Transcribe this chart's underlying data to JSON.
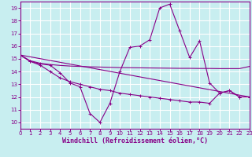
{
  "background_color": "#c8eef0",
  "grid_color": "#ffffff",
  "line_color": "#880088",
  "xlabel": "Windchill (Refroidissement éolien,°C)",
  "xlim": [
    0,
    23
  ],
  "ylim": [
    9.5,
    19.5
  ],
  "yticks": [
    10,
    11,
    12,
    13,
    14,
    15,
    16,
    17,
    18,
    19
  ],
  "xticks": [
    0,
    1,
    2,
    3,
    4,
    5,
    6,
    7,
    8,
    9,
    10,
    11,
    12,
    13,
    14,
    15,
    16,
    17,
    18,
    19,
    20,
    21,
    22,
    23
  ],
  "zigzag_x": [
    0,
    1,
    2,
    3,
    4,
    5,
    6,
    7,
    8,
    9,
    10,
    11,
    12,
    13,
    14,
    15,
    16,
    17,
    18,
    19,
    20,
    21,
    22,
    23
  ],
  "zigzag_y": [
    15.3,
    14.8,
    14.6,
    14.5,
    13.9,
    13.1,
    12.8,
    10.7,
    10.0,
    11.5,
    14.0,
    15.9,
    16.0,
    16.5,
    19.0,
    19.3,
    17.2,
    15.1,
    16.4,
    13.1,
    12.3,
    12.5,
    12.0,
    12.0
  ],
  "flat_x": [
    0,
    1,
    2,
    3,
    4,
    5,
    6,
    7,
    8,
    9,
    10,
    11,
    12,
    13,
    14,
    15,
    16,
    17,
    18,
    19,
    20,
    21,
    22,
    23
  ],
  "flat_y": [
    15.3,
    14.85,
    14.65,
    14.55,
    14.48,
    14.43,
    14.4,
    14.37,
    14.35,
    14.33,
    14.31,
    14.3,
    14.29,
    14.28,
    14.27,
    14.26,
    14.25,
    14.25,
    14.24,
    14.24,
    14.23,
    14.23,
    14.23,
    14.4
  ],
  "trend_x": [
    0,
    23
  ],
  "trend_y": [
    15.3,
    12.0
  ],
  "lower_x": [
    0,
    1,
    2,
    3,
    4,
    5,
    6,
    7,
    8,
    9,
    10,
    11,
    12,
    13,
    14,
    15,
    16,
    17,
    18,
    19,
    20,
    21,
    22,
    23
  ],
  "lower_y": [
    15.3,
    14.8,
    14.5,
    14.0,
    13.5,
    13.2,
    13.0,
    12.8,
    12.6,
    12.5,
    12.3,
    12.2,
    12.1,
    12.0,
    11.9,
    11.8,
    11.7,
    11.6,
    11.6,
    11.5,
    12.3,
    12.5,
    12.0,
    12.0
  ]
}
